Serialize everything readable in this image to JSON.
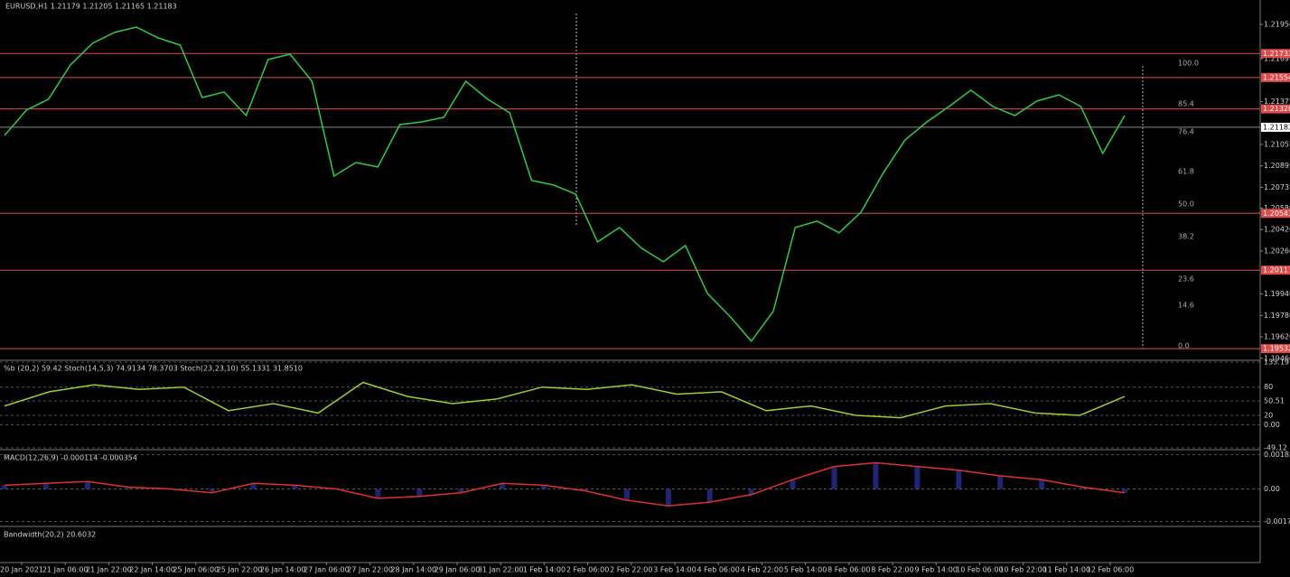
{
  "header": "EURUSD,H1  1.21179 1.21205 1.21165 1.21183",
  "chart_data": {
    "type": "line",
    "color": "#2ecc40",
    "ylim": [
      1.19452,
      1.22132
    ],
    "yticks": [
      {
        "value": 1.2195,
        "label": "1.21950"
      },
      {
        "value": 1.21695,
        "label": "1.21695"
      },
      {
        "value": 1.21375,
        "label": "1.21375"
      },
      {
        "value": 1.21055,
        "label": "1.21055"
      },
      {
        "value": 1.20895,
        "label": "1.20895"
      },
      {
        "value": 1.20735,
        "label": "1.20735"
      },
      {
        "value": 1.2058,
        "label": "1.20580"
      },
      {
        "value": 1.2042,
        "label": "1.20420"
      },
      {
        "value": 1.2026,
        "label": "1.20260"
      },
      {
        "value": 1.1994,
        "label": "1.19940"
      },
      {
        "value": 1.1978,
        "label": "1.19780"
      },
      {
        "value": 1.1962,
        "label": "1.19620"
      },
      {
        "value": 1.1946,
        "label": "1.19460"
      }
    ],
    "levels": [
      {
        "value": 1.21733,
        "label": "1.21733"
      },
      {
        "value": 1.21554,
        "label": "1.21554"
      },
      {
        "value": 1.2132,
        "label": "1.21320"
      },
      {
        "value": 1.20541,
        "label": "1.20541"
      },
      {
        "value": 1.20117,
        "label": "1.20117"
      },
      {
        "value": 1.19532,
        "label": "1.19532"
      }
    ],
    "current": {
      "value": 1.21183,
      "label": "1.21183"
    },
    "values": [
      1.21122,
      1.21311,
      1.21392,
      1.21647,
      1.21809,
      1.2189,
      1.2193,
      1.21849,
      1.21795,
      1.21405,
      1.21446,
      1.2127,
      1.21688,
      1.21728,
      1.21526,
      1.20819,
      1.2092,
      1.20887,
      1.21203,
      1.21223,
      1.21257,
      1.21526,
      1.21392,
      1.21291,
      1.20786,
      1.20752,
      1.20685,
      1.20328,
      1.20436,
      1.20281,
      1.2018,
      1.20301,
      1.19945,
      1.19777,
      1.19588,
      1.1981,
      1.20436,
      1.20483,
      1.20396,
      1.2055,
      1.2084,
      1.21089,
      1.21223,
      1.21338,
      1.21459,
      1.21338,
      1.2127,
      1.21378,
      1.21425,
      1.21338,
      1.20988,
      1.2127
    ],
    "time_labels": [
      "20 Jan 2021",
      "21 Jan 06:00",
      "21 Jan 22:00",
      "22 Jan 14:00",
      "25 Jan 06:00",
      "25 Jan 22:00",
      "26 Jan 14:00",
      "27 Jan 06:00",
      "27 Jan 22:00",
      "28 Jan 14:00",
      "29 Jan 06:00",
      "31 Jan 22:00",
      "1 Feb 14:00",
      "2 Feb 06:00",
      "2 Feb 22:00",
      "3 Feb 14:00",
      "4 Feb 06:00",
      "4 Feb 22:00",
      "5 Feb 14:00",
      "8 Feb 06:00",
      "8 Feb 22:00",
      "9 Feb 14:00",
      "10 Feb 06:00",
      "10 Feb 22:00",
      "11 Feb 14:00",
      "12 Feb 06:00"
    ],
    "fib_levels": [
      "100.0",
      "85.4",
      "76.4",
      "61.8",
      "50.0",
      "38.2",
      "23.6",
      "14.6",
      "0.0"
    ]
  },
  "indicators": [
    {
      "header": "%b (20,2) 59.42  Stoch(14,5,3) 74.9134 78.3703  Stoch(23,23,10) 55.1331 31.8510",
      "ylim": [
        -49.12,
        133.19
      ],
      "yticks": [
        133.19,
        80,
        50.51,
        {
          "value": 0,
          "label": "0.00"
        },
        20,
        -49.12
      ],
      "color": "#9acd32",
      "values": [
        40,
        70,
        85,
        75,
        80,
        30,
        45,
        25,
        90,
        60,
        45,
        55,
        80,
        75,
        85,
        65,
        70,
        30,
        40,
        20,
        15,
        40,
        45,
        25,
        20,
        60
      ]
    },
    {
      "header": "MACD(12,26,9) -0.000114 -0.000354",
      "ylim": [
        -0.0019,
        0.002
      ],
      "yticks": [
        0.001828,
        {
          "value": 0,
          "label": "0.00"
        },
        -0.001731
      ],
      "color": "#e0302a",
      "values": [
        0.0002,
        0.0003,
        0.0004,
        0.0001,
        0,
        -0.0002,
        0.0003,
        0.0002,
        0,
        -0.0005,
        -0.0004,
        -0.0002,
        0.0003,
        0.0002,
        -0.0001,
        -0.0006,
        -0.0009,
        -0.0007,
        -0.0003,
        0.0005,
        0.0012,
        0.0014,
        0.0012,
        0.001,
        0.0007,
        0.0005,
        0.0001,
        -0.0002
      ]
    },
    {
      "header": "Bandwidth(20,2) 20.6032"
    }
  ]
}
